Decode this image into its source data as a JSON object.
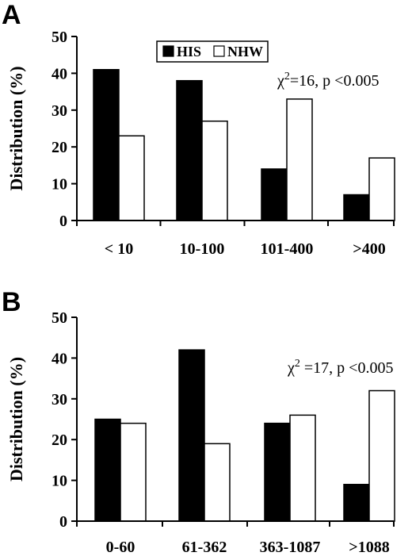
{
  "chart_data": [
    {
      "panel": "A",
      "type": "bar",
      "categories": [
        "< 10",
        "10-100",
        "101-400",
        ">400"
      ],
      "series": [
        {
          "name": "HIS",
          "values": [
            41,
            38,
            14,
            7
          ],
          "color": "#000000"
        },
        {
          "name": "NHW",
          "values": [
            23,
            27,
            33,
            17
          ],
          "color": "#ffffff"
        }
      ],
      "ylabel": "Distribution (%)",
      "ylim": [
        0,
        50
      ],
      "yticks": [
        0,
        10,
        20,
        30,
        40,
        50
      ],
      "annotation": {
        "chi": "χ",
        "sup": "2",
        "rest": "=16, p <0.005"
      },
      "legend": {
        "position": "top-center",
        "entries": [
          "HIS",
          "NHW"
        ]
      },
      "grid": false
    },
    {
      "panel": "B",
      "type": "bar",
      "categories": [
        "0-60",
        "61-362",
        "363-1087",
        ">1088"
      ],
      "series": [
        {
          "name": "HIS",
          "values": [
            25,
            42,
            24,
            9
          ],
          "color": "#000000"
        },
        {
          "name": "NHW",
          "values": [
            24,
            19,
            26,
            32
          ],
          "color": "#ffffff"
        }
      ],
      "ylabel": "Distribution (%)",
      "ylim": [
        0,
        50
      ],
      "yticks": [
        0,
        10,
        20,
        30,
        40,
        50
      ],
      "annotation": {
        "chi": "χ",
        "sup": "2",
        "rest": " =17, p <0.005"
      },
      "grid": false
    }
  ]
}
